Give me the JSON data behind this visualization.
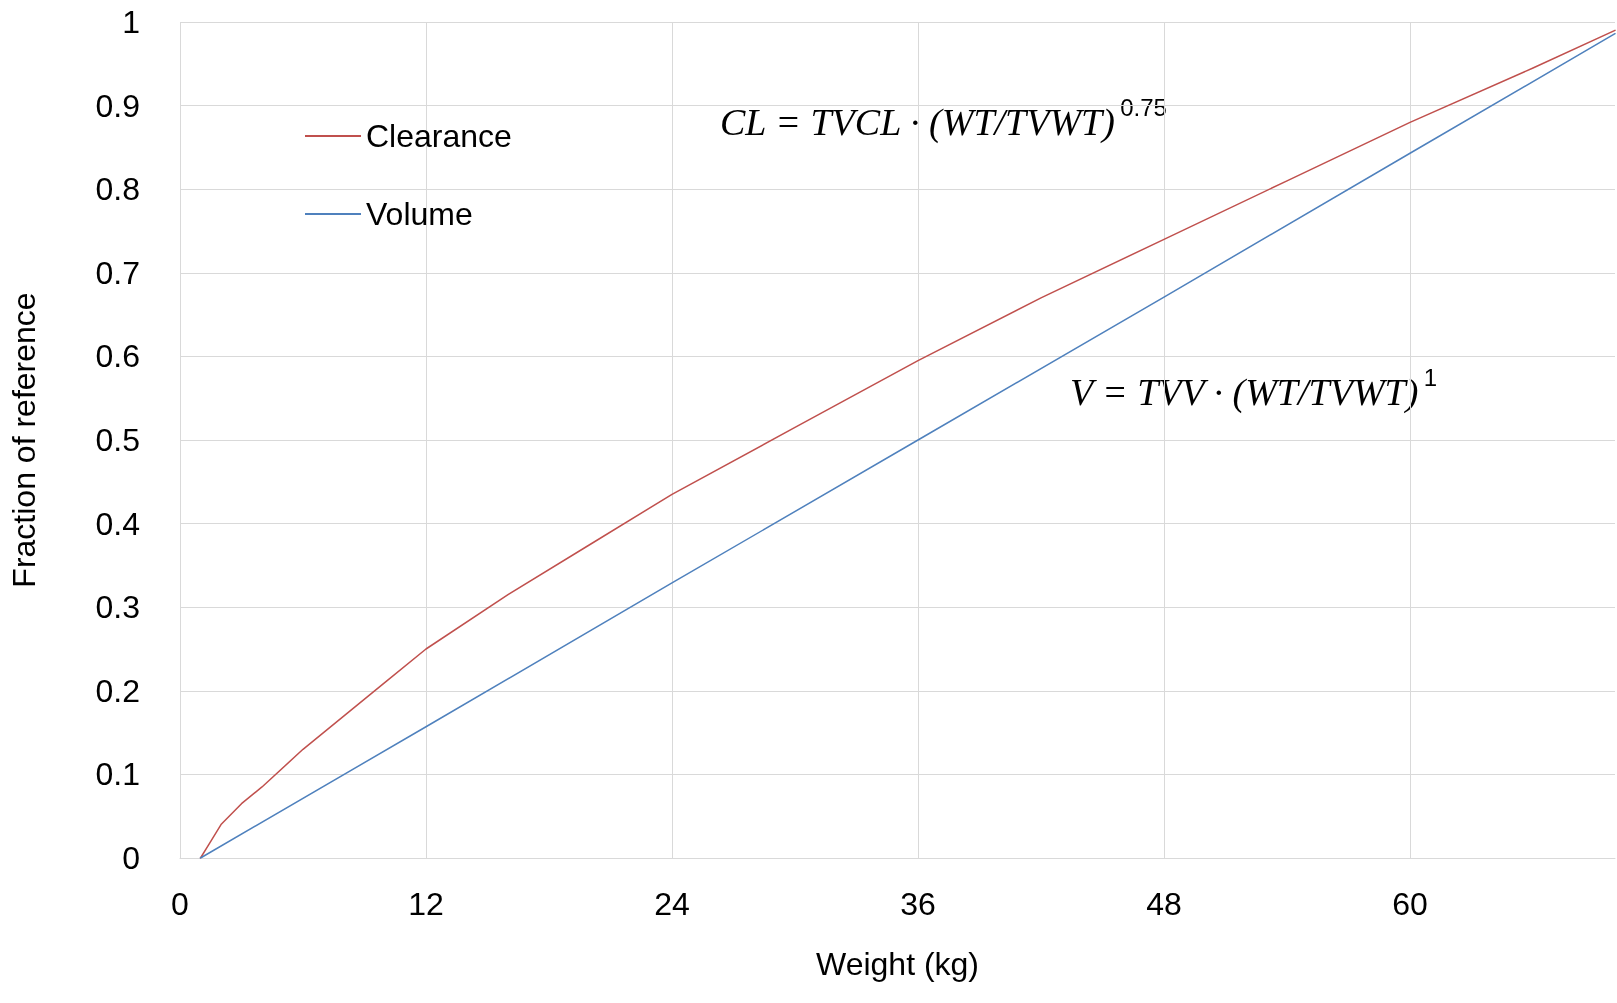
{
  "chart_data": {
    "type": "line",
    "xlabel": "Weight (kg)",
    "ylabel": "Fraction of reference",
    "xlim": [
      0,
      70
    ],
    "xticks": [
      0,
      12,
      24,
      36,
      48,
      60
    ],
    "ylim": [
      0,
      1
    ],
    "yticks": [
      0,
      0.1,
      0.2,
      0.3,
      0.4,
      0.5,
      0.6,
      0.7,
      0.8,
      0.9,
      1
    ],
    "grid": true,
    "legend": "top left",
    "marker": "none",
    "line_style": "solid",
    "annotations": [
      "CL = TVCL · (WT/TVWT)$^{0.75}$",
      "V = TVV · (WT/TVWT)$^{1}$"
    ],
    "series": [
      {
        "name": "Clearance",
        "color": "#c0504d",
        "x": [
          1,
          1.5,
          2,
          3,
          4,
          6,
          8,
          10,
          12,
          16,
          20,
          24,
          30,
          36,
          42,
          48,
          54,
          60,
          66,
          70
        ],
        "values": [
          0,
          0.02,
          0.04,
          0.065,
          0.085,
          0.13,
          0.17,
          0.21,
          0.25,
          0.315,
          0.375,
          0.435,
          0.515,
          0.595,
          0.67,
          0.74,
          0.81,
          0.88,
          0.945,
          0.99
        ]
      },
      {
        "name": "Volume",
        "color": "#4f81bd",
        "x": [
          1,
          12,
          24,
          36,
          48,
          60,
          70
        ],
        "values": [
          0,
          0.157,
          0.329,
          0.5,
          0.671,
          0.843,
          0.986
        ]
      }
    ]
  }
}
